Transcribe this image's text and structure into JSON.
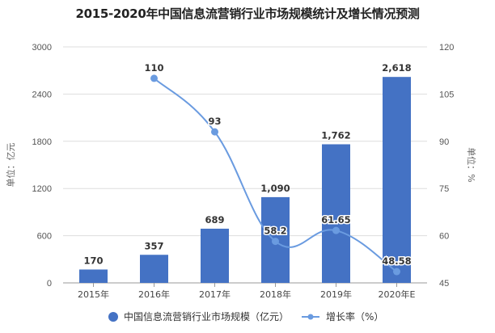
{
  "chart_data": {
    "type": "bar+line",
    "title": "2015-2020年中国信息流营销行业市场规模统计及增长情况预测",
    "categories": [
      "2015年",
      "2016年",
      "2017年",
      "2018年",
      "2019年",
      "2020年E"
    ],
    "series": [
      {
        "name": "中国信息流营销行业市场规模（亿元）",
        "type": "bar",
        "axis": "left",
        "color": "#4472C4",
        "values": [
          170,
          357,
          689,
          1090,
          1762,
          2618
        ],
        "labels": [
          "170",
          "357",
          "689",
          "1,090",
          "1,762",
          "2,618"
        ]
      },
      {
        "name": "增长率（%）",
        "type": "line",
        "axis": "right",
        "color": "#6A9BE0",
        "values": [
          null,
          110,
          93,
          58.2,
          61.65,
          48.58
        ],
        "labels": [
          "",
          "110",
          "93",
          "58.2",
          "61.65",
          "48.58"
        ]
      }
    ],
    "left_axis": {
      "label": "单位：亿元",
      "ylim": [
        0,
        3000
      ],
      "ticks": [
        "0",
        "600",
        "1200",
        "1800",
        "2400",
        "3000"
      ]
    },
    "right_axis": {
      "label": "单位：%",
      "ylim": [
        45,
        120
      ],
      "ticks": [
        "45",
        "60",
        "75",
        "90",
        "105",
        "120"
      ]
    },
    "grid": true,
    "legend_position": "bottom"
  }
}
